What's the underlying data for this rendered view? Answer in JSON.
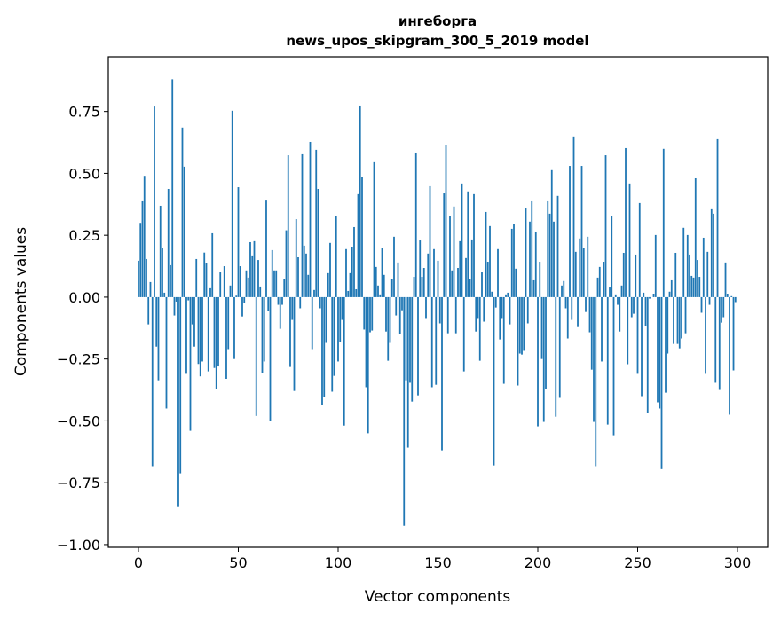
{
  "chart_data": {
    "type": "bar",
    "title": "ингеборга",
    "subtitle": "news_upos_skipgram_300_5_2019 model",
    "xlabel": "Vector components",
    "ylabel": "Components values",
    "xlim": [
      -15.1,
      315.1
    ],
    "ylim": [
      -1.011,
      0.971
    ],
    "xticks": [
      0,
      50,
      100,
      150,
      200,
      250,
      300
    ],
    "xtick_labels": [
      "0",
      "50",
      "100",
      "150",
      "200",
      "250",
      "300"
    ],
    "yticks": [
      0.75,
      0.5,
      0.25,
      0.0,
      -0.25,
      -0.5,
      -0.75,
      -1.0
    ],
    "ytick_labels": [
      "0.75",
      "0.50",
      "0.25",
      "0.00",
      "−0.25",
      "−0.50",
      "−0.75",
      "−1.00"
    ],
    "grid": false,
    "bar_color": "#1f77b4",
    "values": [
      0.147,
      0.3,
      0.387,
      0.49,
      0.154,
      -0.11,
      0.061,
      -0.683,
      0.77,
      -0.2,
      -0.336,
      0.369,
      0.2,
      0.018,
      -0.45,
      0.437,
      0.129,
      0.88,
      -0.074,
      -0.018,
      -0.845,
      -0.712,
      0.685,
      0.527,
      -0.31,
      -0.013,
      -0.54,
      -0.11,
      -0.2,
      0.154,
      -0.27,
      -0.32,
      -0.26,
      0.18,
      0.136,
      -0.3,
      0.036,
      0.258,
      -0.286,
      -0.37,
      -0.28,
      0.1,
      0.0,
      0.125,
      -0.33,
      -0.21,
      0.047,
      0.753,
      -0.25,
      0.006,
      0.444,
      0.125,
      -0.078,
      -0.024,
      0.108,
      0.079,
      0.222,
      0.165,
      0.226,
      -0.48,
      0.15,
      0.043,
      -0.307,
      -0.26,
      0.39,
      -0.056,
      -0.5,
      0.19,
      0.108,
      0.108,
      -0.031,
      -0.128,
      -0.031,
      0.072,
      0.27,
      0.573,
      -0.282,
      -0.092,
      -0.379,
      0.315,
      0.161,
      -0.045,
      0.577,
      0.208,
      0.176,
      0.09,
      0.627,
      -0.21,
      0.029,
      0.595,
      0.437,
      -0.045,
      -0.436,
      -0.404,
      -0.185,
      0.097,
      0.219,
      -0.382,
      -0.318,
      0.326,
      -0.26,
      -0.182,
      -0.092,
      -0.519,
      0.194,
      0.025,
      0.097,
      0.204,
      0.283,
      0.032,
      0.416,
      0.774,
      0.484,
      -0.131,
      -0.364,
      -0.55,
      -0.142,
      -0.135,
      0.545,
      0.122,
      0.047,
      0.011,
      0.197,
      0.09,
      -0.139,
      -0.257,
      -0.185,
      0.072,
      0.244,
      -0.074,
      0.14,
      -0.149,
      -0.053,
      -0.924,
      -0.336,
      -0.608,
      -0.346,
      -0.422,
      0.082,
      0.584,
      -0.397,
      0.229,
      0.082,
      0.118,
      -0.088,
      0.176,
      0.448,
      -0.364,
      0.194,
      -0.354,
      0.147,
      -0.106,
      -0.619,
      0.419,
      0.616,
      -0.146,
      0.326,
      0.108,
      0.366,
      -0.146,
      0.118,
      0.226,
      0.459,
      -0.3,
      0.158,
      0.427,
      0.072,
      0.233,
      0.416,
      -0.139,
      -0.088,
      -0.257,
      0.1,
      -0.099,
      0.344,
      0.143,
      0.287,
      0.022,
      -0.68,
      -0.042,
      0.194,
      -0.171,
      -0.088,
      -0.35,
      0.011,
      0.018,
      -0.11,
      0.276,
      0.294,
      0.115,
      -0.357,
      -0.228,
      -0.232,
      -0.217,
      0.358,
      -0.106,
      0.305,
      0.387,
      0.068,
      0.265,
      -0.522,
      0.143,
      -0.25,
      -0.504,
      -0.372,
      0.387,
      0.337,
      0.513,
      0.305,
      -0.483,
      0.409,
      -0.407,
      0.047,
      0.065,
      -0.045,
      -0.167,
      0.53,
      -0.092,
      0.649,
      0.183,
      -0.121,
      0.237,
      0.53,
      0.2,
      -0.06,
      0.244,
      -0.142,
      -0.293,
      -0.504,
      -0.683,
      0.079,
      0.122,
      -0.26,
      0.143,
      0.573,
      -0.515,
      0.039,
      0.326,
      -0.558,
      0.011,
      -0.031,
      -0.139,
      0.047,
      0.179,
      0.602,
      -0.271,
      0.459,
      -0.081,
      -0.067,
      0.172,
      -0.31,
      0.38,
      -0.4,
      0.018,
      -0.117,
      -0.468,
      -0.006,
      0.0,
      0.014,
      0.251,
      -0.425,
      -0.45,
      -0.695,
      0.599,
      -0.386,
      -0.228,
      0.022,
      0.068,
      -0.189,
      0.179,
      -0.189,
      -0.207,
      -0.167,
      0.28,
      -0.146,
      0.251,
      0.172,
      0.086,
      0.079,
      0.48,
      0.15,
      0.082,
      -0.063,
      0.24,
      -0.31,
      0.183,
      -0.031,
      0.355,
      0.337,
      -0.346,
      0.638,
      -0.375,
      -0.103,
      -0.081,
      0.14,
      0.014,
      -0.475,
      0.004,
      -0.296,
      -0.02
    ]
  }
}
